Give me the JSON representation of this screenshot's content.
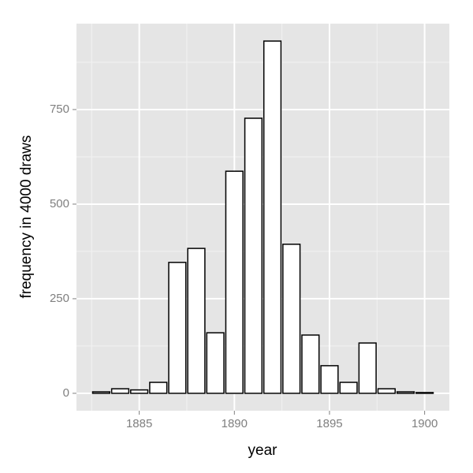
{
  "chart_data": {
    "type": "bar",
    "x_label": "year",
    "y_label": "frequency in 4000 draws",
    "x": [
      1883,
      1884,
      1885,
      1886,
      1887,
      1888,
      1889,
      1890,
      1891,
      1892,
      1893,
      1894,
      1895,
      1896,
      1897,
      1898,
      1899,
      1900
    ],
    "values": [
      4,
      12,
      9,
      29,
      346,
      383,
      160,
      587,
      727,
      931,
      394,
      154,
      73,
      29,
      133,
      12,
      4,
      2
    ],
    "color": "#ffffff",
    "border_color": "#000000",
    "xlim": [
      1881.7,
      1901.3
    ],
    "ylim": [
      -46,
      977
    ],
    "xticks": [
      1885,
      1890,
      1895,
      1900
    ],
    "yticks": [
      0,
      250,
      500,
      750
    ],
    "x_minor_grid": [
      1882.5,
      1887.5,
      1892.5,
      1897.5
    ],
    "y_minor_grid": [
      125,
      375,
      625,
      875
    ],
    "grid": true
  }
}
